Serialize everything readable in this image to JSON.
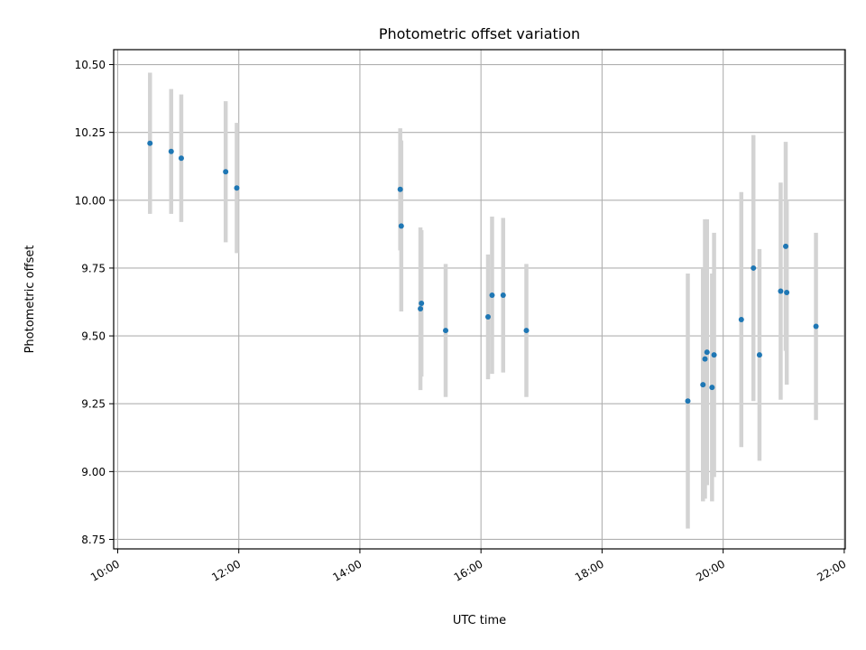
{
  "chart_data": {
    "type": "scatter",
    "title": "Photometric offset variation",
    "xlabel": "UTC time",
    "ylabel": "Photometric offset",
    "x_unit": "UTC time (HH:MM)",
    "xlim": [
      "09:56",
      "22:01"
    ],
    "ylim": [
      8.715,
      10.555
    ],
    "x_ticks": [
      "10:00",
      "12:00",
      "14:00",
      "16:00",
      "18:00",
      "20:00",
      "22:00"
    ],
    "y_ticks": [
      8.75,
      9.0,
      9.25,
      9.5,
      9.75,
      10.0,
      10.25,
      10.5
    ],
    "y_tick_labels": [
      "8.75",
      "9.00",
      "9.25",
      "9.50",
      "9.75",
      "10.00",
      "10.25",
      "10.50"
    ],
    "grid": true,
    "colors": {
      "points": "#1f77b4",
      "error_bars": "#d3d3d3",
      "grid": "#b0b0b0"
    },
    "points": [
      {
        "t": "10:32",
        "y": 10.21,
        "err": 0.26
      },
      {
        "t": "10:53",
        "y": 10.18,
        "err": 0.23
      },
      {
        "t": "11:03",
        "y": 10.155,
        "err": 0.235
      },
      {
        "t": "11:47",
        "y": 10.105,
        "err": 0.26
      },
      {
        "t": "11:58",
        "y": 10.045,
        "err": 0.24
      },
      {
        "t": "14:40",
        "y": 10.04,
        "err": 0.225
      },
      {
        "t": "14:41",
        "y": 9.905,
        "err": 0.315
      },
      {
        "t": "15:00",
        "y": 9.6,
        "err": 0.3
      },
      {
        "t": "15:01",
        "y": 9.62,
        "err": 0.27
      },
      {
        "t": "15:25",
        "y": 9.52,
        "err": 0.245
      },
      {
        "t": "16:07",
        "y": 9.57,
        "err": 0.23
      },
      {
        "t": "16:11",
        "y": 9.65,
        "err": 0.29
      },
      {
        "t": "16:22",
        "y": 9.65,
        "err": 0.285
      },
      {
        "t": "16:45",
        "y": 9.52,
        "err": 0.245
      },
      {
        "t": "19:25",
        "y": 9.26,
        "err": 0.47
      },
      {
        "t": "19:40",
        "y": 9.32,
        "err": 0.43
      },
      {
        "t": "19:42",
        "y": 9.415,
        "err": 0.515
      },
      {
        "t": "19:44",
        "y": 9.44,
        "err": 0.49
      },
      {
        "t": "19:49",
        "y": 9.31,
        "err": 0.42
      },
      {
        "t": "19:51",
        "y": 9.43,
        "err": 0.45
      },
      {
        "t": "20:18",
        "y": 9.56,
        "err": 0.47
      },
      {
        "t": "20:30",
        "y": 9.75,
        "err": 0.49
      },
      {
        "t": "20:36",
        "y": 9.43,
        "err": 0.39
      },
      {
        "t": "20:57",
        "y": 9.665,
        "err": 0.4
      },
      {
        "t": "21:02",
        "y": 9.83,
        "err": 0.385
      },
      {
        "t": "21:03",
        "y": 9.66,
        "err": 0.34
      },
      {
        "t": "21:32",
        "y": 9.535,
        "err": 0.345
      }
    ]
  }
}
